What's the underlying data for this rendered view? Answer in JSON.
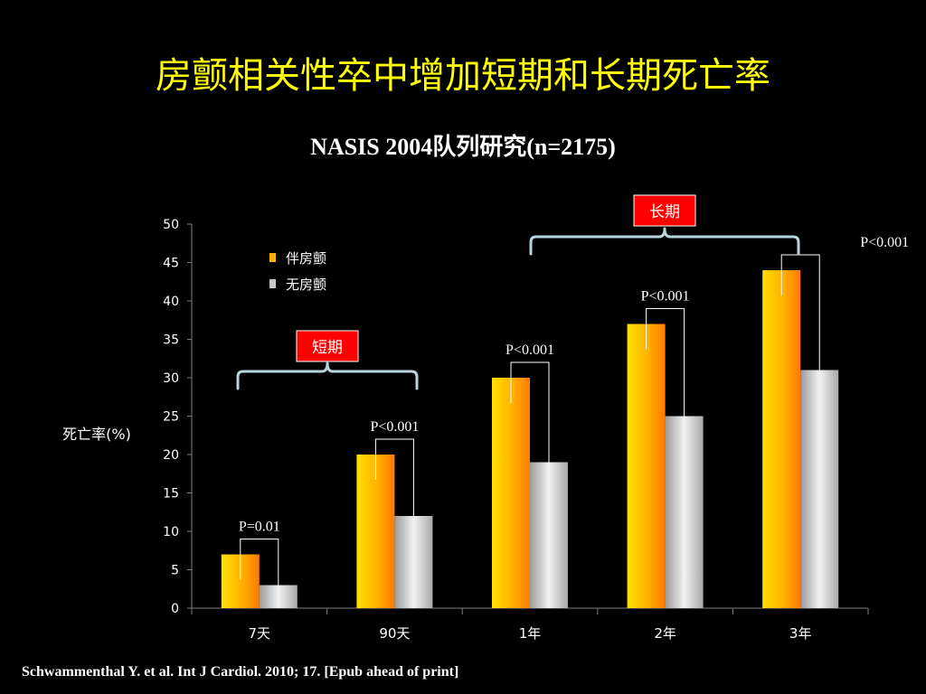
{
  "slide": {
    "title": "房颤相关性卒中增加短期和长期死亡率",
    "subtitle": "NASIS  2004队列研究(n=2175)",
    "citation": "Schwammenthal Y.  et al. Int J Cardiol. 2010; 17. [Epub ahead of print]"
  },
  "colors": {
    "background": "#000000",
    "title": "#FFFF00",
    "text": "#FFFFFF",
    "af_series": "#FFB000",
    "no_af_series": "#C8C8C8",
    "bracket": "#B8D4DC",
    "period_box": "#FF0000"
  },
  "chart_data": {
    "type": "bar",
    "ylabel": "死亡率(%)",
    "ylim": [
      0,
      50
    ],
    "yticks": [
      0,
      5,
      10,
      15,
      20,
      25,
      30,
      35,
      40,
      45,
      50
    ],
    "categories": [
      "7天",
      "90天",
      "1年",
      "2年",
      "3年"
    ],
    "series": [
      {
        "name": "伴房颤",
        "values": [
          7,
          20,
          30,
          37,
          44
        ]
      },
      {
        "name": "无房颤",
        "values": [
          3,
          12,
          19,
          25,
          31
        ]
      }
    ],
    "p_values": [
      "P=0.01",
      "P<0.001",
      "P<0.001",
      "P<0.001",
      "P<0.001"
    ],
    "groups": [
      {
        "label": "短期",
        "categories": [
          "7天",
          "90天"
        ]
      },
      {
        "label": "长期",
        "categories": [
          "1年",
          "2年",
          "3年"
        ]
      }
    ],
    "legend_position": "top-left",
    "grid": false
  }
}
